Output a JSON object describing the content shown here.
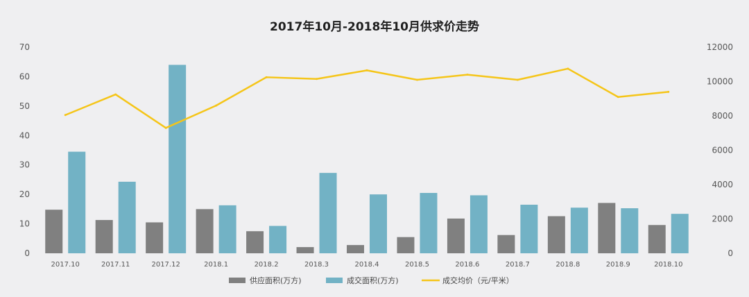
{
  "chart_data": {
    "type": "bar",
    "title": "2017年10月-2018年10月供求价走势",
    "categories": [
      "2017.10",
      "2017.11",
      "2017.12",
      "2018.1",
      "2018.2",
      "2018.3",
      "2018.4",
      "2018.5",
      "2018.6",
      "2018.7",
      "2018.8",
      "2018.9",
      "2018.10"
    ],
    "series": [
      {
        "name": "供应面积(万方)",
        "type": "bar",
        "axis": "left",
        "color": "#808080",
        "values": [
          14.8,
          11.3,
          10.5,
          15,
          7.5,
          2.1,
          2.8,
          5.5,
          11.8,
          6.2,
          12.6,
          17.1,
          9.6
        ]
      },
      {
        "name": "成交面积(万方)",
        "type": "bar",
        "axis": "left",
        "color": "#72b2c5",
        "values": [
          34.5,
          24.3,
          64,
          16.3,
          9.3,
          27.3,
          20,
          20.5,
          19.7,
          16.5,
          15.5,
          15.3,
          13.4
        ]
      },
      {
        "name": "成交均价（元/平米）",
        "type": "line",
        "axis": "right",
        "color": "#f5c518",
        "values": [
          8050,
          9250,
          7300,
          8600,
          10250,
          10150,
          10650,
          10100,
          10400,
          10100,
          10750,
          9100,
          9400
        ]
      }
    ],
    "y_left": {
      "min": 0,
      "max": 70,
      "ticks": [
        "0",
        "10",
        "20",
        "30",
        "40",
        "50",
        "60",
        "70"
      ]
    },
    "y_right": {
      "min": 0,
      "max": 12000,
      "ticks": [
        "0",
        "2000",
        "4000",
        "6000",
        "8000",
        "10000",
        "12000"
      ]
    },
    "grid": false,
    "legend_position": "bottom"
  }
}
